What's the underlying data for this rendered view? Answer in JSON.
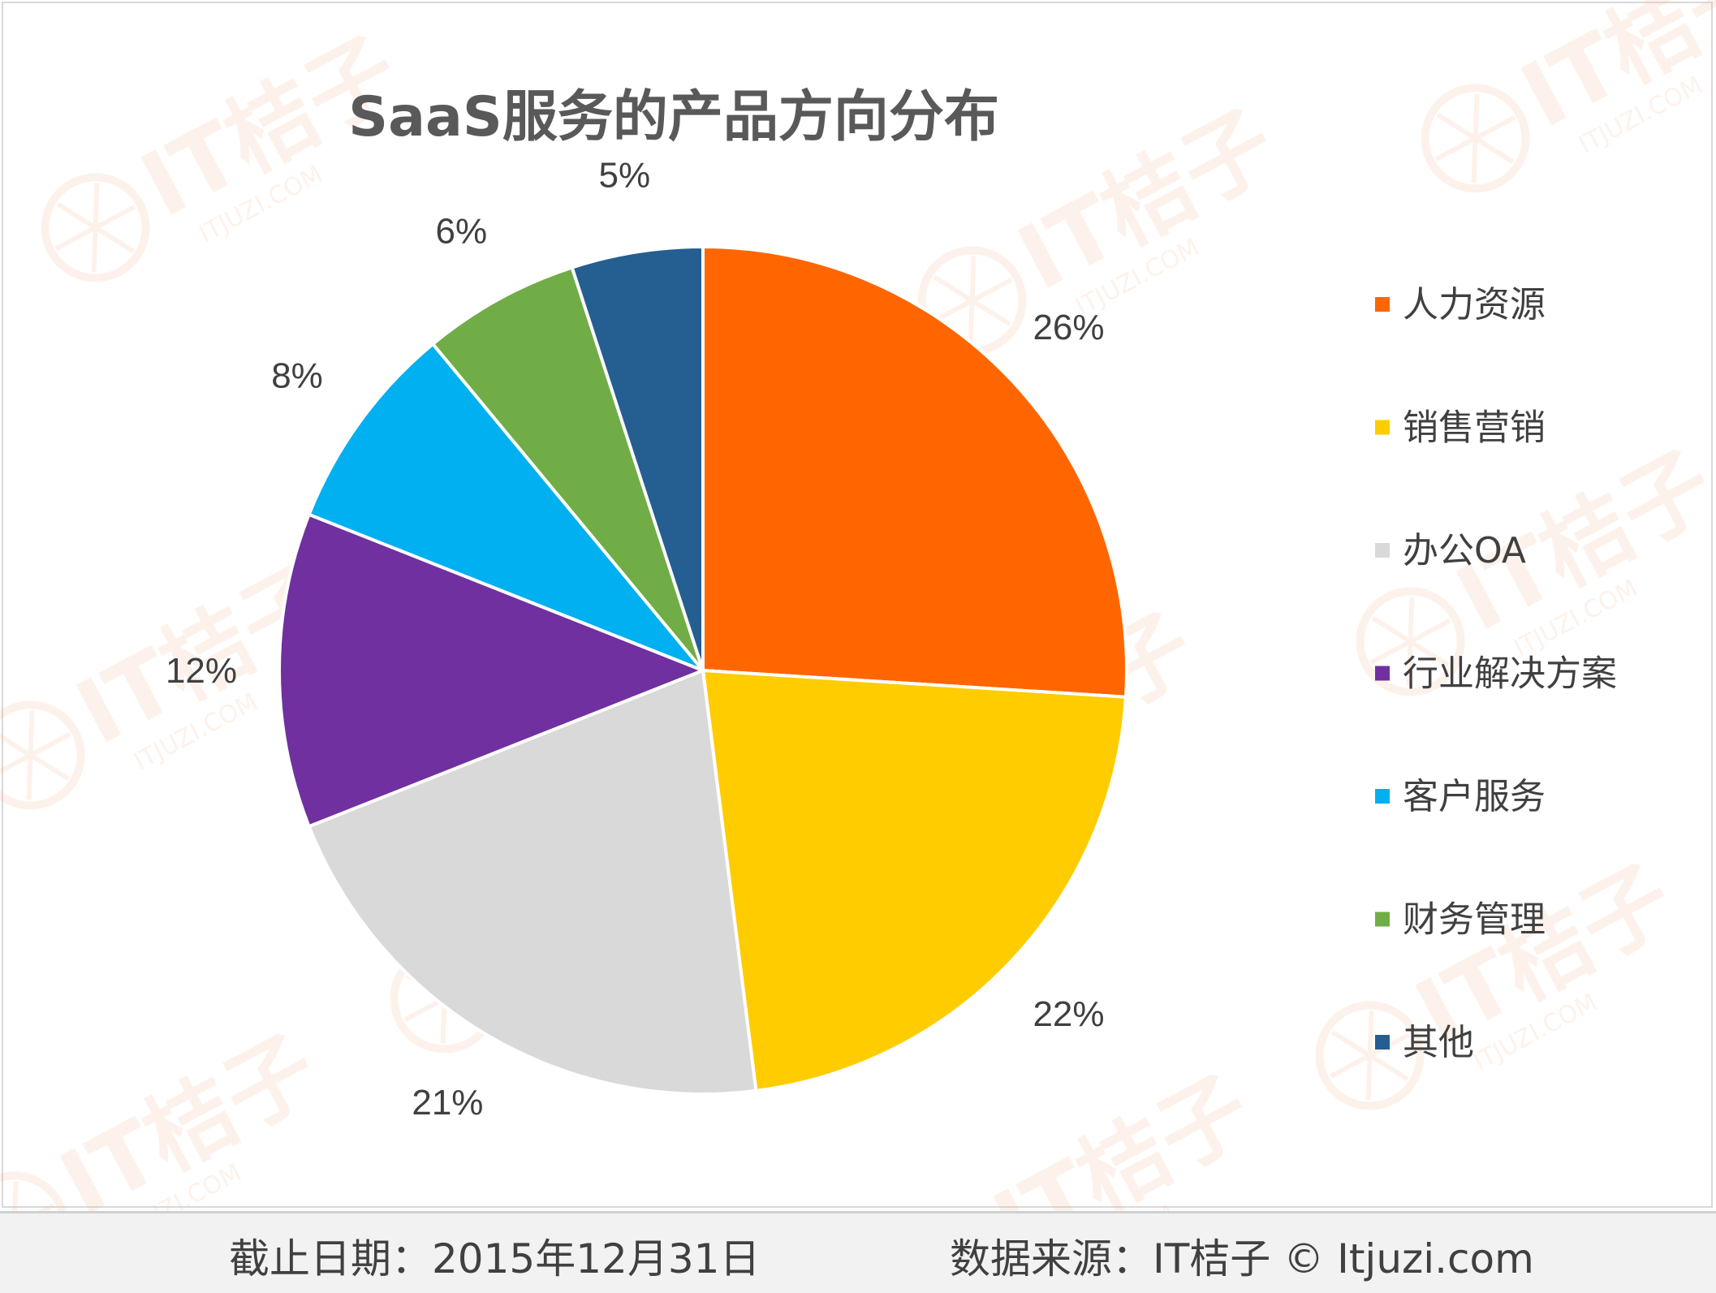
{
  "chart_data": {
    "type": "pie",
    "title": "SaaS服务的产品方向分布",
    "categories": [
      "人力资源",
      "销售营销",
      "办公OA",
      "行业解决方案",
      "客户服务",
      "财务管理",
      "其他"
    ],
    "values": [
      26,
      22,
      21,
      12,
      8,
      6,
      5
    ],
    "value_labels": [
      "26%",
      "22%",
      "21%",
      "12%",
      "8%",
      "6%",
      "5%"
    ],
    "colors": [
      "#ff6600",
      "#ffcc00",
      "#d9d9d9",
      "#7030a0",
      "#00b0f0",
      "#70ad47",
      "#255e91"
    ],
    "start_angle": "12 o'clock",
    "direction": "clockwise",
    "legend_position": "right"
  },
  "footer": {
    "date_text": "截止日期：2015年12月31日",
    "source_text": "数据来源：IT桔子 © Itjuzi.com"
  },
  "watermark": {
    "text": "IT桔子",
    "subtext": "ITJUZI.COM",
    "color": "#f4b08a"
  }
}
